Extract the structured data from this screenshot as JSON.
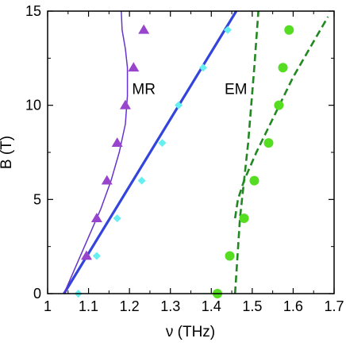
{
  "chart_data": {
    "type": "scatter",
    "xlabel": "ν (THz)",
    "ylabel": "B (T)",
    "xlim": [
      1.0,
      1.7
    ],
    "ylim": [
      0,
      15
    ],
    "xticks": [
      1,
      1.1,
      1.2,
      1.3,
      1.4,
      1.5,
      1.6,
      1.7
    ],
    "xtick_labels": [
      "1",
      "1.1",
      "1.2",
      "1.3",
      "1.4",
      "1.5",
      "1.6",
      "1.7"
    ],
    "yticks": [
      0,
      5,
      10,
      15
    ],
    "ytick_labels": [
      "0",
      "5",
      "10",
      "15"
    ],
    "grid": false,
    "annotations": [
      {
        "text": "MR",
        "x": 1.235,
        "y": 10.6
      },
      {
        "text": "EM",
        "x": 1.46,
        "y": 10.6
      }
    ],
    "series": [
      {
        "kind": "scatter",
        "marker": "triangle",
        "color": "#9944cc",
        "x": [
          1.095,
          1.12,
          1.145,
          1.17,
          1.19,
          1.21,
          1.235
        ],
        "y": [
          2,
          4,
          6,
          8,
          10,
          12,
          14
        ]
      },
      {
        "kind": "scatter",
        "marker": "diamond",
        "color": "#66eef0",
        "x": [
          1.075,
          1.12,
          1.17,
          1.23,
          1.28,
          1.32,
          1.38,
          1.44
        ],
        "y": [
          0,
          2,
          4,
          6,
          8,
          10,
          12,
          14
        ]
      },
      {
        "kind": "scatter",
        "marker": "circle",
        "color": "#55dd22",
        "x": [
          1.415,
          1.445,
          1.48,
          1.505,
          1.54,
          1.565,
          1.575,
          1.59
        ],
        "y": [
          0,
          2,
          4,
          6,
          8,
          10,
          12,
          14
        ]
      },
      {
        "kind": "line",
        "style": "solid",
        "color": "#3344dd",
        "width": "thick",
        "x": [
          1.04,
          1.461
        ],
        "y": [
          0,
          15
        ]
      },
      {
        "kind": "line",
        "style": "solid",
        "color": "#6633cc",
        "width": "thin",
        "x": [
          1.04,
          1.07,
          1.1,
          1.13,
          1.155,
          1.175,
          1.19,
          1.195,
          1.195,
          1.19,
          1.182,
          1.18
        ],
        "y": [
          0,
          1.5,
          3,
          4.5,
          6,
          7.5,
          9,
          10.5,
          12,
          13,
          14,
          15
        ]
      },
      {
        "kind": "line",
        "style": "dashed",
        "color": "#228822",
        "width": "medium",
        "x": [
          1.458,
          1.47,
          1.49,
          1.505,
          1.515
        ],
        "y": [
          0,
          4,
          8,
          12,
          15
        ]
      },
      {
        "kind": "line",
        "style": "dashed",
        "color": "#228822",
        "width": "medium",
        "x": [
          1.458,
          1.465,
          1.48,
          1.51,
          1.555,
          1.6,
          1.645,
          1.685
        ],
        "y": [
          4,
          5,
          6,
          7.5,
          9.5,
          11.5,
          13.2,
          14.7
        ]
      }
    ]
  }
}
